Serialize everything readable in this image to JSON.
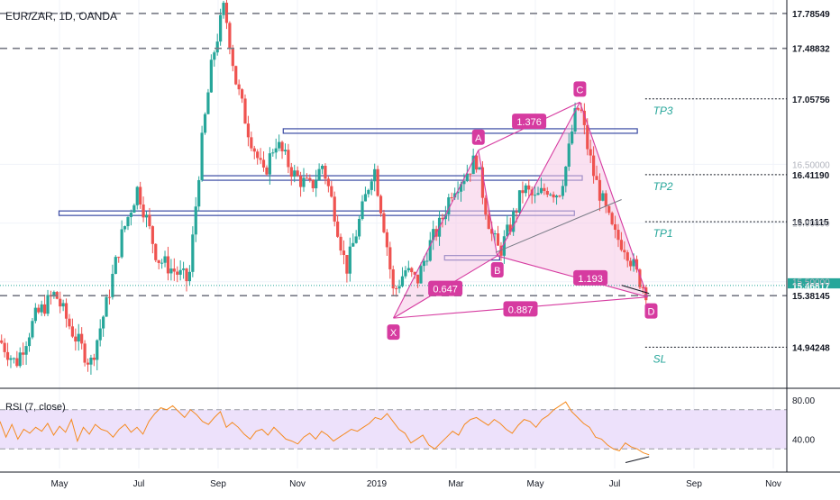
{
  "header": {
    "symbol": "EUR/ZAR, 1D, OANDA"
  },
  "colors": {
    "up": "#26a69a",
    "down": "#ef5350",
    "pattern": "#d63ba0",
    "pattern_fill": "#f6c9e6",
    "rsi_line": "#f58a1f",
    "rsi_band": "#ede1fb",
    "zone": "#3a4aa3",
    "last_price": "#26a69a",
    "tp_text": "#26a69a",
    "axis_text": "#131722"
  },
  "chart_data": [
    {
      "type": "candlestick",
      "title": "EUR/ZAR, 1D, OANDA",
      "x_ticks": [
        "May",
        "Jul",
        "Sep",
        "Nov",
        "2019",
        "Mar",
        "May",
        "Jul",
        "Sep",
        "Nov"
      ],
      "y_ticks": [
        16.5,
        16.0,
        15.5
      ],
      "ylim": [
        14.6,
        17.9
      ],
      "grid": true,
      "price_labels": {
        "top1": "17.78549",
        "top2": "17.48832",
        "tp3": "17.05756",
        "tp2": "16.41190",
        "tp1": "16.01115",
        "last": "15.46817",
        "entry": "15.38145",
        "sl": "14.94248"
      },
      "levels": [
        {
          "name": "17.78549",
          "value": 17.78549,
          "style": "dashed"
        },
        {
          "name": "17.48832",
          "value": 17.48832,
          "style": "dashed"
        },
        {
          "name": "17.05756",
          "value": 17.05756,
          "style": "dotted"
        },
        {
          "name": "16.41190",
          "value": 16.4119,
          "style": "dotted"
        },
        {
          "name": "16.01115",
          "value": 16.01115,
          "style": "dotted"
        },
        {
          "name": "15.46817",
          "value": 15.46817,
          "style": "last"
        },
        {
          "name": "15.38145",
          "value": 15.38145,
          "style": "dashed"
        },
        {
          "name": "14.94248",
          "value": 14.94248,
          "style": "dotted"
        }
      ],
      "targets": [
        {
          "label": "TP3",
          "value": 17.05756
        },
        {
          "label": "TP2",
          "value": 16.4119
        },
        {
          "label": "TP1",
          "value": 16.01115
        },
        {
          "label": "SL",
          "value": 14.94248
        }
      ],
      "zones": [
        {
          "value": 16.78
        },
        {
          "value": 16.38
        },
        {
          "value": 16.08
        },
        {
          "value": 15.7
        }
      ],
      "pattern": {
        "points": [
          {
            "label": "X",
            "t": 0.5,
            "price": 15.19
          },
          {
            "label": "A",
            "t": 0.608,
            "price": 16.62
          },
          {
            "label": "B",
            "t": 0.632,
            "price": 15.72
          },
          {
            "label": "C",
            "t": 0.737,
            "price": 17.03
          },
          {
            "label": "D",
            "t": 0.823,
            "price": 15.37
          }
        ],
        "ratios": [
          {
            "label": "1.376",
            "between": [
              "A",
              "C"
            ]
          },
          {
            "label": "0.647",
            "between": [
              "X",
              "B"
            ]
          },
          {
            "label": "1.193",
            "between": [
              "B",
              "D"
            ]
          },
          {
            "label": "0.887",
            "between": [
              "X",
              "D"
            ]
          }
        ]
      },
      "price_path": [
        [
          0.0,
          15.0
        ],
        [
          0.02,
          14.8
        ],
        [
          0.045,
          15.2
        ],
        [
          0.07,
          15.4
        ],
        [
          0.09,
          15.1
        ],
        [
          0.115,
          14.8
        ],
        [
          0.135,
          15.3
        ],
        [
          0.155,
          15.9
        ],
        [
          0.175,
          16.3
        ],
        [
          0.2,
          15.7
        ],
        [
          0.22,
          15.6
        ],
        [
          0.24,
          15.5
        ],
        [
          0.255,
          16.6
        ],
        [
          0.27,
          17.4
        ],
        [
          0.285,
          17.85
        ],
        [
          0.3,
          17.2
        ],
        [
          0.315,
          16.8
        ],
        [
          0.335,
          16.4
        ],
        [
          0.35,
          16.7
        ],
        [
          0.375,
          16.4
        ],
        [
          0.395,
          16.3
        ],
        [
          0.41,
          16.5
        ],
        [
          0.425,
          16.1
        ],
        [
          0.44,
          15.6
        ],
        [
          0.46,
          16.1
        ],
        [
          0.475,
          16.5
        ],
        [
          0.49,
          15.9
        ],
        [
          0.5,
          15.4
        ],
        [
          0.515,
          15.6
        ],
        [
          0.53,
          15.5
        ],
        [
          0.545,
          15.8
        ],
        [
          0.56,
          16.0
        ],
        [
          0.575,
          16.3
        ],
        [
          0.59,
          16.4
        ],
        [
          0.605,
          16.55
        ],
        [
          0.615,
          16.2
        ],
        [
          0.625,
          15.9
        ],
        [
          0.635,
          15.75
        ],
        [
          0.65,
          16.0
        ],
        [
          0.665,
          16.3
        ],
        [
          0.68,
          16.2
        ],
        [
          0.695,
          16.3
        ],
        [
          0.71,
          16.25
        ],
        [
          0.72,
          16.5
        ],
        [
          0.73,
          16.9
        ],
        [
          0.737,
          17.0
        ],
        [
          0.745,
          16.7
        ],
        [
          0.755,
          16.4
        ],
        [
          0.765,
          16.2
        ],
        [
          0.78,
          15.9
        ],
        [
          0.795,
          15.8
        ],
        [
          0.81,
          15.55
        ],
        [
          0.823,
          15.4
        ]
      ]
    },
    {
      "type": "line",
      "title": "RSI (7, close)",
      "y_ticks": [
        "80.00",
        "40.00"
      ],
      "ylim": [
        10,
        90
      ],
      "band": [
        30,
        70
      ],
      "values": [
        58,
        42,
        55,
        40,
        50,
        46,
        52,
        48,
        56,
        44,
        53,
        47,
        60,
        38,
        52,
        45,
        55,
        50,
        48,
        42,
        50,
        55,
        47,
        52,
        45,
        58,
        66,
        72,
        70,
        74,
        68,
        62,
        70,
        65,
        58,
        55,
        62,
        68,
        52,
        57,
        52,
        45,
        40,
        48,
        50,
        44,
        52,
        46,
        40,
        38,
        35,
        42,
        46,
        40,
        48,
        44,
        38,
        42,
        46,
        50,
        48,
        52,
        56,
        62,
        60,
        66,
        58,
        50,
        46,
        36,
        40,
        44,
        34,
        30,
        36,
        42,
        48,
        44,
        55,
        60,
        62,
        58,
        54,
        60,
        56,
        50,
        46,
        54,
        60,
        58,
        52,
        60,
        64,
        70,
        74,
        78,
        68,
        62,
        56,
        52,
        42,
        40,
        34,
        30,
        28,
        36,
        32,
        30,
        26,
        24
      ]
    }
  ]
}
